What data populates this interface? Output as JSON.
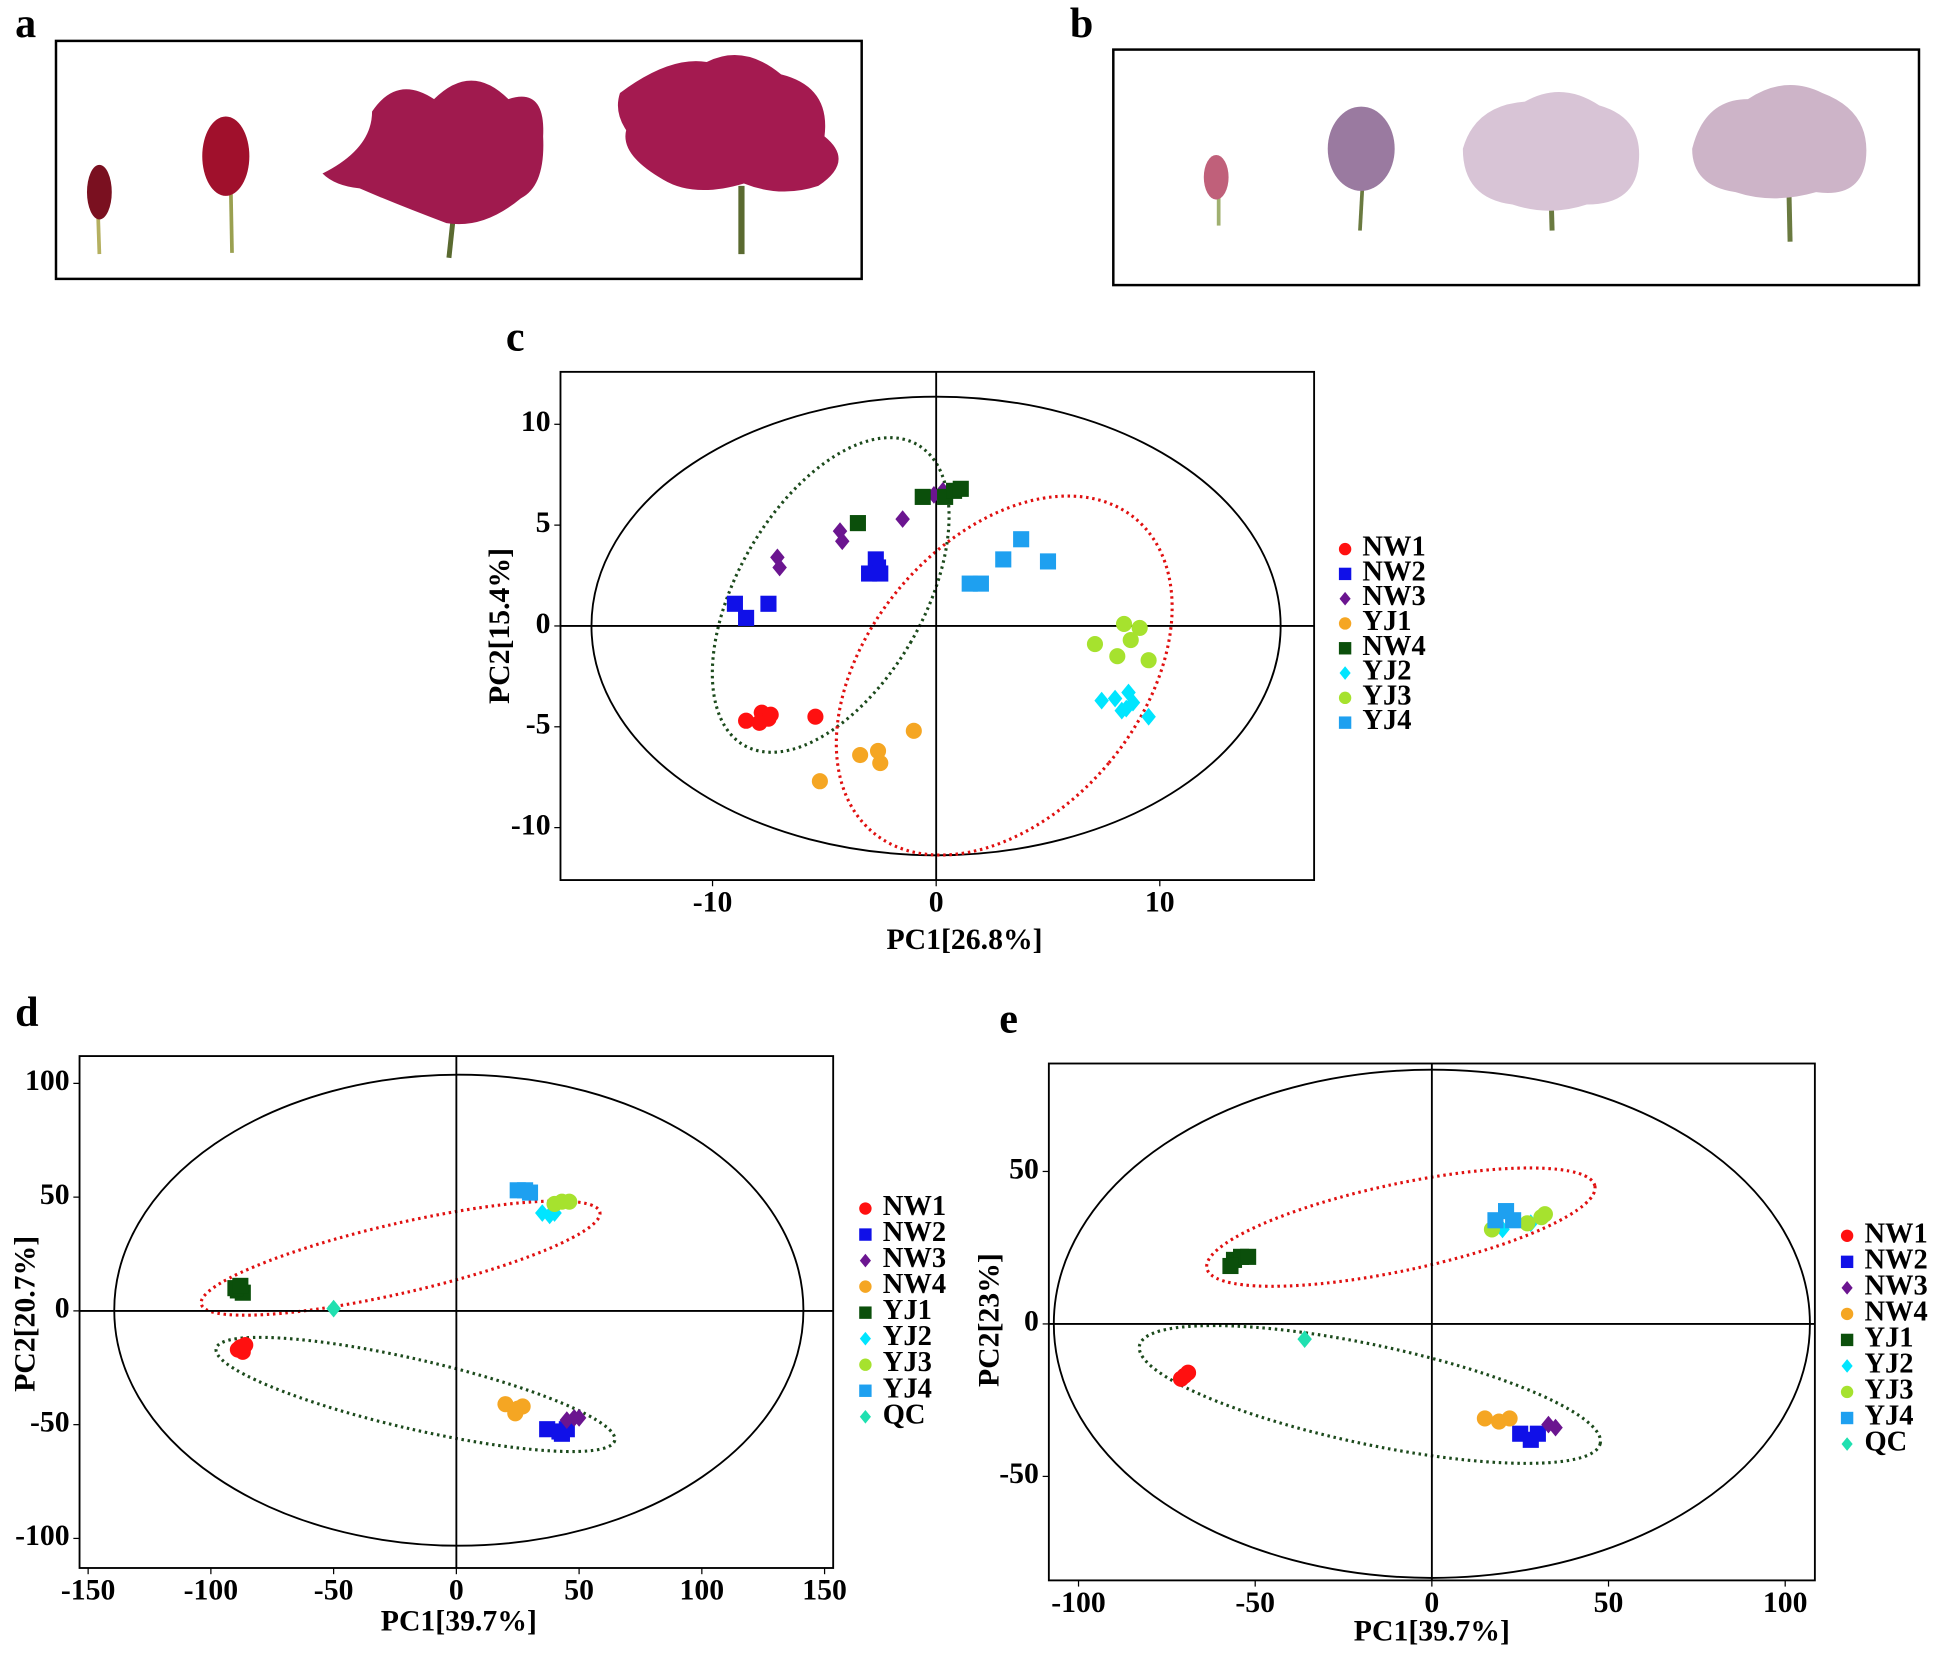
{
  "panels": [
    "a",
    "b"
  ],
  "chart_data": [
    {
      "type": "scatter",
      "panel": "c",
      "xlabel": "PC1[26.8%]",
      "ylabel": "PC2[15.4%]",
      "xlim": [
        -16.8,
        16.9
      ],
      "ylim": [
        -12.6,
        12.6
      ],
      "xticks": [
        -10,
        0,
        10
      ],
      "yticks": [
        -10,
        -5,
        0,
        5,
        10
      ],
      "series": [
        {
          "name": "NW1",
          "color": "#ff1010",
          "marker": "circle",
          "x": [
            -8.5,
            -7.8,
            -7.5,
            -7.9,
            -5.4,
            -7.4
          ],
          "y": [
            -4.7,
            -4.3,
            -4.6,
            -4.8,
            -4.5,
            -4.4
          ]
        },
        {
          "name": "NW2",
          "color": "#1010e8",
          "marker": "square",
          "x": [
            -9,
            -8.5,
            -7.5,
            -3,
            -2.6,
            -2.7,
            -2.5
          ],
          "y": [
            1.1,
            0.4,
            1.1,
            2.6,
            2.9,
            3.3,
            2.6
          ]
        },
        {
          "name": "NW3",
          "color": "#6b1590",
          "marker": "diamond",
          "x": [
            -7.1,
            -7,
            -4.3,
            -4.2,
            -1.5,
            -0.1,
            0.3
          ],
          "y": [
            3.4,
            2.9,
            4.7,
            4.2,
            5.3,
            6.5,
            6.7
          ]
        },
        {
          "name": "YJ1",
          "color": "#f5a623",
          "marker": "circle",
          "x": [
            -5.2,
            -3.4,
            -2.6,
            -2.5,
            -1
          ],
          "y": [
            -7.7,
            -6.4,
            -6.2,
            -6.8,
            -5.2
          ]
        },
        {
          "name": "NW4",
          "color": "#0b4f0b",
          "marker": "square",
          "x": [
            -3.5,
            -0.6,
            0.4,
            0.8,
            1.1
          ],
          "y": [
            5.1,
            6.4,
            6.4,
            6.7,
            6.8
          ]
        },
        {
          "name": "YJ2",
          "color": "#00e5ff",
          "marker": "diamond",
          "x": [
            7.4,
            8.0,
            8.3,
            8.6,
            8.8,
            9.5,
            8.5
          ],
          "y": [
            -3.7,
            -3.6,
            -4.2,
            -3.3,
            -3.8,
            -4.5,
            -4.1
          ]
        },
        {
          "name": "YJ3",
          "color": "#a6e22e",
          "marker": "circle",
          "x": [
            7.1,
            8.4,
            9.1,
            8.7,
            8.1,
            9.5
          ],
          "y": [
            -0.9,
            0.1,
            -0.1,
            -0.7,
            -1.5,
            -1.7
          ]
        },
        {
          "name": "YJ4",
          "color": "#1ea0f0",
          "marker": "square",
          "x": [
            1.5,
            2,
            3,
            3.8,
            5
          ],
          "y": [
            2.1,
            2.1,
            3.3,
            4.3,
            3.2
          ]
        }
      ]
    },
    {
      "type": "scatter",
      "panel": "d",
      "xlabel": "PC1[39.7%]",
      "ylabel": "PC2[20.7%]",
      "xlim": [
        -153.5,
        153.5
      ],
      "ylim": [
        -113,
        112
      ],
      "xticks": [
        -150,
        -100,
        -50,
        0,
        50,
        100,
        150
      ],
      "yticks": [
        -100,
        -50,
        0,
        50,
        100
      ],
      "series": [
        {
          "name": "NW1",
          "color": "#ff1010",
          "marker": "circle",
          "x": [
            -88,
            -87,
            -89,
            -86
          ],
          "y": [
            -16,
            -18,
            -17,
            -15
          ]
        },
        {
          "name": "NW2",
          "color": "#1010e8",
          "marker": "square",
          "x": [
            37,
            42,
            45,
            43
          ],
          "y": [
            -52,
            -53,
            -52,
            -54
          ]
        },
        {
          "name": "NW3",
          "color": "#6b1590",
          "marker": "diamond",
          "x": [
            45,
            48,
            50
          ],
          "y": [
            -48,
            -47,
            -47
          ]
        },
        {
          "name": "NW4",
          "color": "#f5a623",
          "marker": "circle",
          "x": [
            20,
            25,
            27,
            24
          ],
          "y": [
            -41,
            -43,
            -42,
            -45
          ]
        },
        {
          "name": "YJ1",
          "color": "#0b4f0b",
          "marker": "square",
          "x": [
            -89,
            -87,
            -90,
            -88
          ],
          "y": [
            9,
            8,
            10,
            11
          ]
        },
        {
          "name": "YJ2",
          "color": "#00e5ff",
          "marker": "diamond",
          "x": [
            35,
            38,
            40
          ],
          "y": [
            43,
            42,
            43
          ]
        },
        {
          "name": "YJ3",
          "color": "#a6e22e",
          "marker": "circle",
          "x": [
            40,
            43,
            46
          ],
          "y": [
            47,
            48,
            48
          ]
        },
        {
          "name": "YJ4",
          "color": "#1ea0f0",
          "marker": "square",
          "x": [
            25,
            28,
            30
          ],
          "y": [
            53,
            53,
            52
          ]
        },
        {
          "name": "QC",
          "color": "#20e0b0",
          "marker": "diamond",
          "x": [
            -50
          ],
          "y": [
            1
          ]
        }
      ]
    },
    {
      "type": "scatter",
      "panel": "e",
      "xlabel": "PC1[39.7%]",
      "ylabel": "PC2[23%]",
      "xlim": [
        -108.4,
        108.4
      ],
      "ylim": [
        -84.1,
        85.4
      ],
      "xticks": [
        -100,
        -50,
        0,
        50,
        100
      ],
      "yticks": [
        -50,
        0,
        50
      ],
      "series": [
        {
          "name": "NW1",
          "color": "#ff1010",
          "marker": "circle",
          "x": [
            -70,
            -71,
            -69
          ],
          "y": [
            -17,
            -18,
            -16
          ]
        },
        {
          "name": "NW2",
          "color": "#1010e8",
          "marker": "square",
          "x": [
            25,
            28,
            30
          ],
          "y": [
            -36,
            -38,
            -36
          ]
        },
        {
          "name": "NW3",
          "color": "#6b1590",
          "marker": "diamond",
          "x": [
            33,
            35
          ],
          "y": [
            -33,
            -34
          ]
        },
        {
          "name": "NW4",
          "color": "#f5a623",
          "marker": "circle",
          "x": [
            15,
            19,
            22
          ],
          "y": [
            -31,
            -32,
            -31
          ]
        },
        {
          "name": "YJ1",
          "color": "#0b4f0b",
          "marker": "square",
          "x": [
            -56,
            -54,
            -57,
            -52
          ],
          "y": [
            21,
            22,
            19,
            22
          ]
        },
        {
          "name": "YJ2",
          "color": "#00e5ff",
          "marker": "diamond",
          "x": [
            20,
            28
          ],
          "y": [
            31,
            33
          ]
        },
        {
          "name": "YJ3",
          "color": "#a6e22e",
          "marker": "circle",
          "x": [
            17,
            27,
            31,
            32
          ],
          "y": [
            31,
            33,
            35,
            36
          ]
        },
        {
          "name": "YJ4",
          "color": "#1ea0f0",
          "marker": "square",
          "x": [
            18,
            21,
            23
          ],
          "y": [
            34,
            37,
            34
          ]
        },
        {
          "name": "QC",
          "color": "#20e0b0",
          "marker": "diamond",
          "x": [
            -36
          ],
          "y": [
            -5
          ]
        }
      ]
    }
  ]
}
